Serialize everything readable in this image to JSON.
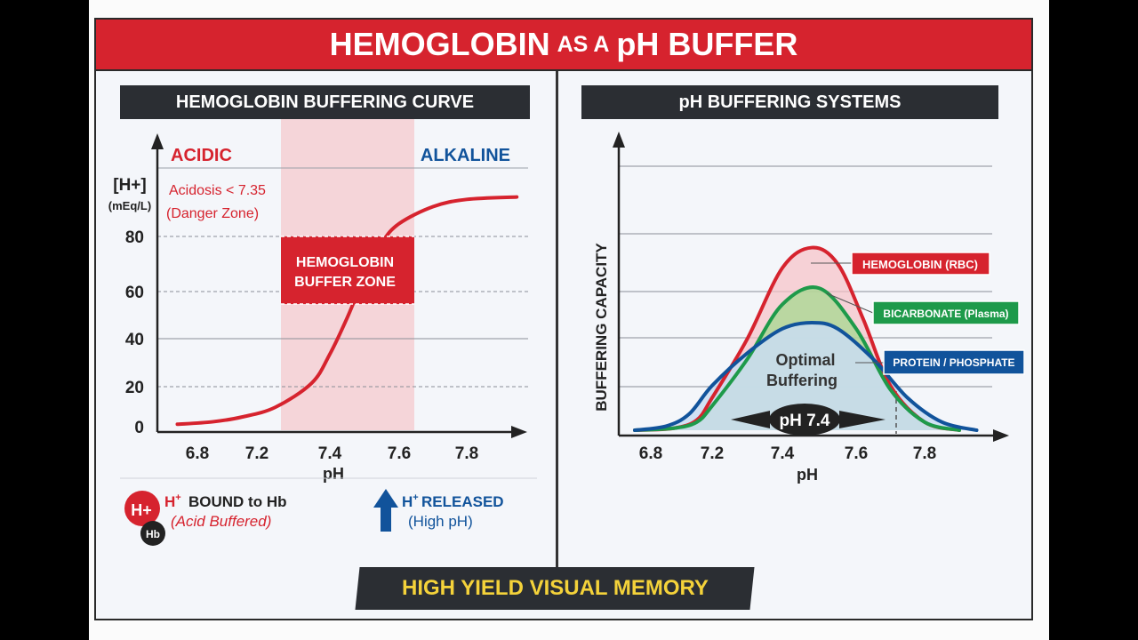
{
  "title": {
    "part1": "HEMOGLOBIN",
    "part2": "AS A",
    "part3": "pH BUFFER"
  },
  "left_panel": {
    "heading": "HEMOGLOBIN BUFFERING CURVE",
    "acidic_label": "ACIDIC",
    "alkaline_label": "ALKALINE",
    "y_axis_title": "[H+]",
    "y_axis_unit": "(mEq/L)",
    "acidosis_line1": "Acidosis < 7.35",
    "acidosis_line2": "(Danger Zone)",
    "buffer_zone_line1": "HEMOGLOBIN",
    "buffer_zone_line2": "BUFFER ZONE",
    "x_label": "pH",
    "legend_bound_line1": "BOUND to Hb",
    "legend_bound_line2": "(Acid Buffered)",
    "legend_released_line1": "RELEASED",
    "legend_released_line2": "(High pH)",
    "badge_h": "H+",
    "badge_hb": "Hb"
  },
  "right_panel": {
    "heading": "pH BUFFERING SYSTEMS",
    "y_label": "BUFFERING CAPACITY",
    "x_label": "pH",
    "optimal_line1": "Optimal",
    "optimal_line2": "Buffering",
    "optimal_ph": "pH 7.4"
  },
  "footer": "HIGH YIELD VISUAL MEMORY",
  "colors": {
    "red": "#d6232e",
    "green": "#1e9a4a",
    "blue": "#11539b",
    "dark": "#2b2e33",
    "gold": "#f4d23a"
  },
  "chart_data": [
    {
      "type": "line",
      "title": "HEMOGLOBIN BUFFERING CURVE",
      "xlabel": "pH",
      "ylabel": "[H+] (mEq/L)",
      "x_ticks": [
        "6.8",
        "7.2",
        "7.4",
        "7.6",
        "7.8"
      ],
      "y_ticks": [
        "0",
        "20",
        "40",
        "60",
        "80"
      ],
      "xlim": [
        6.7,
        8.0
      ],
      "ylim": [
        0,
        100
      ],
      "shaded_region": {
        "label": "HEMOGLOBIN BUFFER ZONE",
        "x": [
          7.28,
          7.64
        ]
      },
      "series": [
        {
          "x": [
            6.75,
            6.9,
            7.1,
            7.25,
            7.35,
            7.4,
            7.45,
            7.5,
            7.55,
            7.6,
            7.7,
            7.8,
            7.95
          ],
          "y": [
            1,
            2,
            4,
            8,
            18,
            30,
            45,
            62,
            76,
            84,
            91,
            94,
            95
          ]
        }
      ]
    },
    {
      "type": "line",
      "title": "pH BUFFERING SYSTEMS",
      "xlabel": "pH",
      "ylabel": "BUFFERING CAPACITY",
      "x_ticks": [
        "6.8",
        "7.2",
        "7.4",
        "7.6",
        "7.8"
      ],
      "xlim": [
        6.7,
        8.0
      ],
      "ylim": [
        0,
        100
      ],
      "series": [
        {
          "name": "HEMOGLOBIN (RBC)",
          "color": "#d6232e",
          "x": [
            6.75,
            6.95,
            7.1,
            7.2,
            7.3,
            7.4,
            7.48,
            7.55,
            7.62,
            7.7,
            7.8,
            7.9
          ],
          "y": [
            0,
            1,
            5,
            16,
            45,
            80,
            90,
            82,
            55,
            22,
            4,
            0
          ]
        },
        {
          "name": "BICARBONATE (Plasma)",
          "color": "#1e9a4a",
          "x": [
            6.75,
            6.95,
            7.1,
            7.2,
            7.3,
            7.4,
            7.5,
            7.6,
            7.7,
            7.8,
            7.9
          ],
          "y": [
            0,
            1,
            4,
            12,
            35,
            62,
            70,
            50,
            20,
            4,
            0
          ]
        },
        {
          "name": "PROTEIN / PHOSPHATE",
          "color": "#11539b",
          "x": [
            6.75,
            6.9,
            7.05,
            7.2,
            7.3,
            7.4,
            7.48,
            7.55,
            7.65,
            7.75,
            7.85,
            7.95
          ],
          "y": [
            0,
            2,
            8,
            22,
            38,
            50,
            53,
            50,
            35,
            16,
            4,
            0
          ]
        }
      ]
    }
  ]
}
